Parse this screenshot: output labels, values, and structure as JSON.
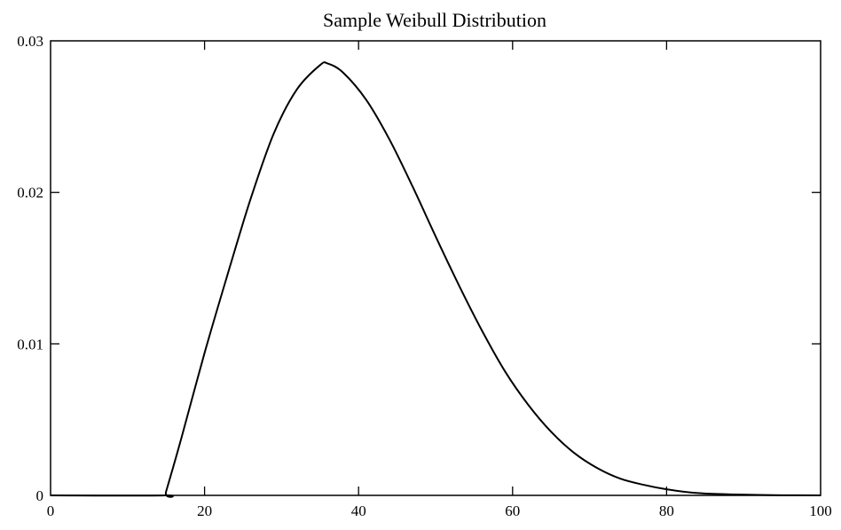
{
  "chart_data": {
    "type": "line",
    "title": "Sample Weibull Distribution",
    "xlabel": "",
    "ylabel": "",
    "xlim": [
      0,
      100
    ],
    "ylim": [
      0,
      0.03
    ],
    "x_ticks": [
      0,
      20,
      40,
      60,
      80,
      100
    ],
    "x_tick_labels": [
      "0",
      "20",
      "40",
      "60",
      "80",
      "100"
    ],
    "y_ticks": [
      0,
      0.01,
      0.02,
      0.03
    ],
    "y_tick_labels": [
      "0",
      "0.01",
      "0.02",
      "0.03"
    ],
    "grid": false,
    "legend": "none",
    "line_color": "#000000",
    "series": [
      {
        "x": [
          0,
          14.8,
          15,
          17,
          20,
          23,
          26,
          29,
          32,
          35,
          36,
          38,
          41,
          44,
          47,
          50,
          53,
          56,
          59,
          62,
          65,
          68,
          71,
          74,
          77,
          80,
          83,
          86,
          89,
          92,
          95,
          100
        ],
        "y": [
          0,
          0,
          0.00025,
          0.0038,
          0.0094,
          0.0146,
          0.0196,
          0.0239,
          0.0268,
          0.0284,
          0.0285,
          0.0279,
          0.0261,
          0.0235,
          0.0204,
          0.0171,
          0.0139,
          0.0109,
          0.0082,
          0.006,
          0.0042,
          0.0028,
          0.0018,
          0.0011,
          0.0007,
          0.0004,
          0.0002,
          0.0001,
          6e-05,
          3e-05,
          1e-05,
          0.0
        ]
      }
    ]
  }
}
